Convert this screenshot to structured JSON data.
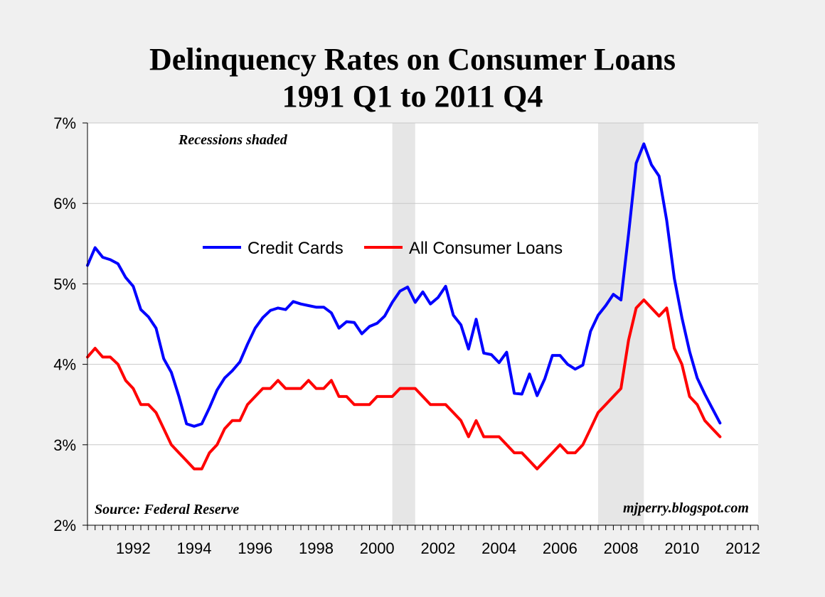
{
  "chart_data": {
    "type": "line",
    "title": "Delinquency Rates on Consumer Loans",
    "subtitle": "1991 Q1 to 2011 Q4",
    "xlabel": "",
    "ylabel": "",
    "xlim": [
      1991.0,
      2013.0
    ],
    "ylim": [
      2,
      7
    ],
    "grid": true,
    "legend_position": "upper-middle",
    "y_ticks": [
      {
        "value": 2,
        "label": "2%"
      },
      {
        "value": 3,
        "label": "3%"
      },
      {
        "value": 4,
        "label": "4%"
      },
      {
        "value": 5,
        "label": "5%"
      },
      {
        "value": 6,
        "label": "6%"
      },
      {
        "value": 7,
        "label": "7%"
      }
    ],
    "x_ticks": [
      {
        "value": 1992,
        "label": "1992"
      },
      {
        "value": 1994,
        "label": "1994"
      },
      {
        "value": 1996,
        "label": "1996"
      },
      {
        "value": 1998,
        "label": "1998"
      },
      {
        "value": 2000,
        "label": "2000"
      },
      {
        "value": 2002,
        "label": "2002"
      },
      {
        "value": 2004,
        "label": "2004"
      },
      {
        "value": 2006,
        "label": "2006"
      },
      {
        "value": 2008,
        "label": "2008"
      },
      {
        "value": 2010,
        "label": "2010"
      },
      {
        "value": 2012,
        "label": "2012"
      }
    ],
    "recessions": [
      {
        "start": 2001.0,
        "end": 2001.75
      },
      {
        "start": 2007.75,
        "end": 2009.25
      }
    ],
    "series": [
      {
        "name": "Credit Cards",
        "color": "#0000ff",
        "values": [
          5.23,
          5.45,
          5.33,
          5.3,
          5.25,
          5.08,
          4.97,
          4.68,
          4.59,
          4.45,
          4.07,
          3.9,
          3.6,
          3.26,
          3.23,
          3.26,
          3.46,
          3.68,
          3.83,
          3.92,
          4.03,
          4.25,
          4.45,
          4.58,
          4.67,
          4.7,
          4.68,
          4.78,
          4.75,
          4.73,
          4.71,
          4.71,
          4.64,
          4.45,
          4.53,
          4.52,
          4.38,
          4.47,
          4.51,
          4.6,
          4.77,
          4.91,
          4.96,
          4.77,
          4.9,
          4.75,
          4.83,
          4.97,
          4.61,
          4.49,
          4.19,
          4.56,
          4.14,
          4.12,
          4.02,
          4.15,
          3.64,
          3.63,
          3.88,
          3.61,
          3.82,
          4.11,
          4.11,
          4.0,
          3.94,
          3.99,
          4.41,
          4.61,
          4.73,
          4.87,
          4.8,
          5.62,
          6.5,
          6.74,
          6.48,
          6.34,
          5.79,
          5.07,
          4.58,
          4.16,
          3.83,
          3.63,
          3.45,
          3.27
        ]
      },
      {
        "name": "All Consumer Loans",
        "color": "#ff0000",
        "values": [
          4.09,
          4.2,
          4.09,
          4.09,
          4.0,
          3.8,
          3.7,
          3.5,
          3.5,
          3.4,
          3.2,
          3.0,
          2.9,
          2.8,
          2.7,
          2.7,
          2.9,
          3.0,
          3.2,
          3.3,
          3.3,
          3.5,
          3.6,
          3.7,
          3.7,
          3.8,
          3.7,
          3.7,
          3.7,
          3.8,
          3.7,
          3.7,
          3.8,
          3.6,
          3.6,
          3.5,
          3.5,
          3.5,
          3.6,
          3.6,
          3.6,
          3.7,
          3.7,
          3.7,
          3.6,
          3.5,
          3.5,
          3.5,
          3.4,
          3.3,
          3.1,
          3.3,
          3.1,
          3.1,
          3.1,
          3.0,
          2.9,
          2.9,
          2.8,
          2.7,
          2.8,
          2.9,
          3.0,
          2.9,
          2.9,
          3.0,
          3.2,
          3.4,
          3.5,
          3.6,
          3.7,
          4.3,
          4.7,
          4.8,
          4.7,
          4.6,
          4.7,
          4.2,
          4.0,
          3.6,
          3.5,
          3.3,
          3.2,
          3.1
        ]
      }
    ],
    "annotations": [
      {
        "text": "Recessions shaded",
        "position": "top-left"
      },
      {
        "text": "Source: Federal Reserve",
        "position": "bottom-left"
      },
      {
        "text": "mjperry.blogspot.com",
        "position": "bottom-right"
      }
    ]
  }
}
